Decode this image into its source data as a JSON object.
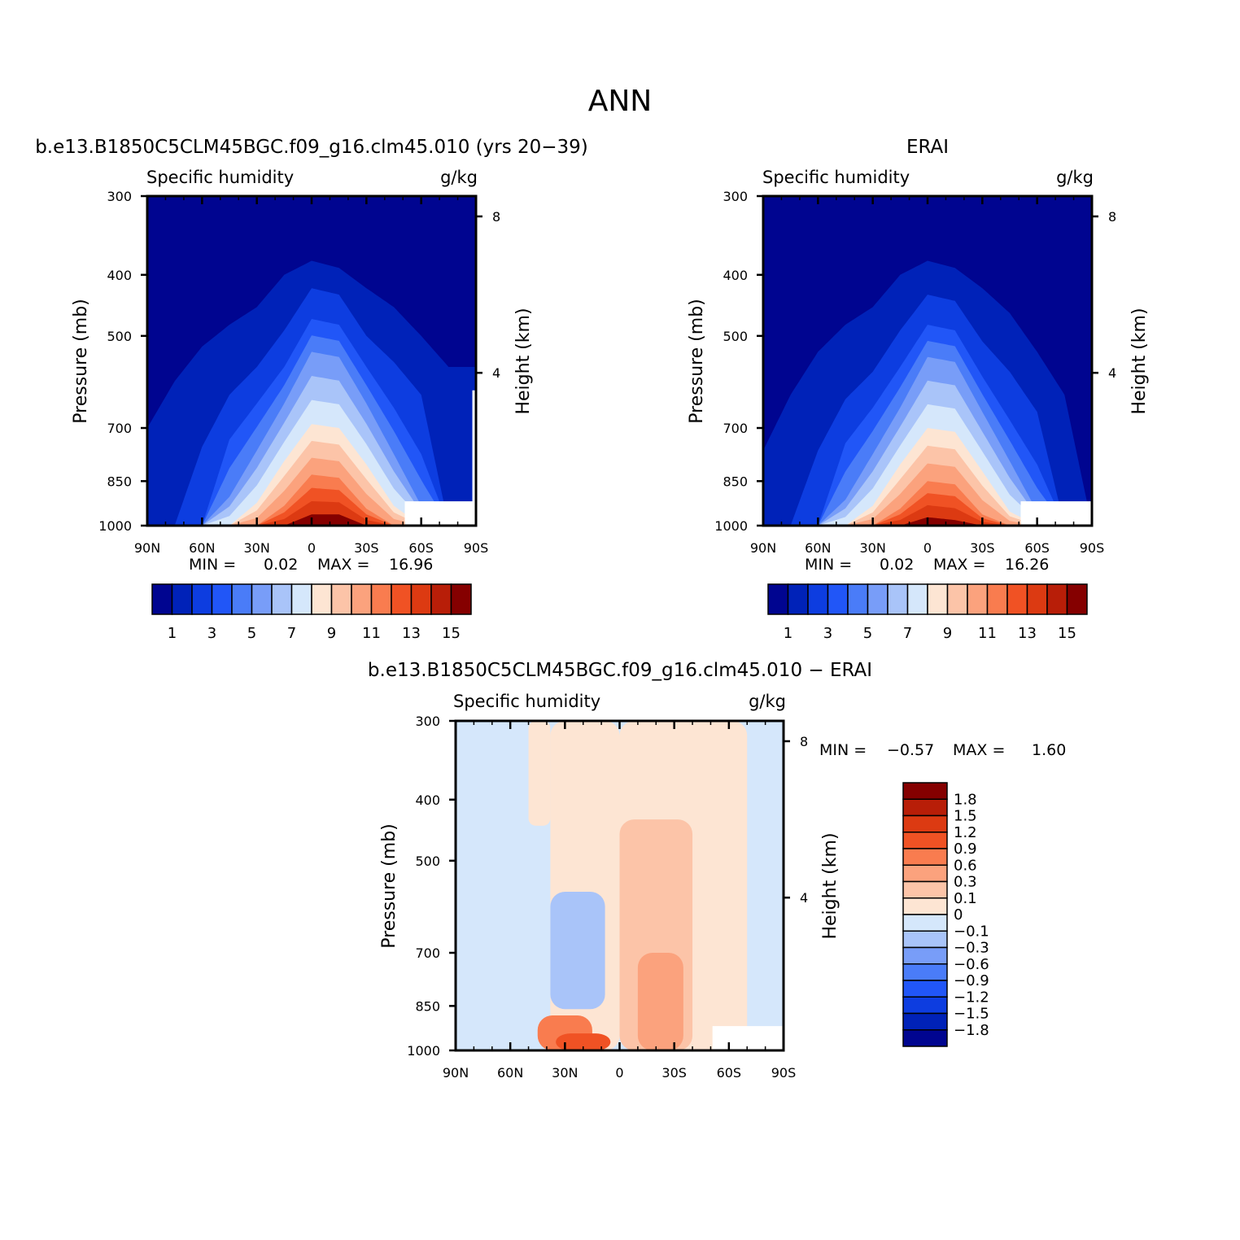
{
  "page": {
    "title": "ANN"
  },
  "axes_common": {
    "lat_ticks": [
      "90N",
      "60N",
      "30N",
      "0",
      "30S",
      "60S",
      "90S"
    ],
    "lat_values": [
      90,
      60,
      30,
      0,
      -30,
      -60,
      -90
    ],
    "pressure_ticks": [
      "300",
      "400",
      "500",
      "700",
      "850",
      "1000"
    ],
    "pressure_values": [
      300,
      400,
      500,
      700,
      850,
      1000
    ],
    "height_ticks": [
      "8",
      "4"
    ],
    "height_values": [
      8,
      4
    ],
    "ylabel_left": "Pressure (mb)",
    "ylabel_right": "Height (km)",
    "variable_label": "Specific humidity",
    "units_label": "g/kg"
  },
  "colors": {
    "abs_scale": [
      "#000590",
      "#0022b8",
      "#0d3de0",
      "#2156f7",
      "#4a7cf8",
      "#789df8",
      "#a9c4f9",
      "#d5e7fb",
      "#fde5d3",
      "#fcc4a8",
      "#fba27d",
      "#f97c4f",
      "#f05224",
      "#dc3a12",
      "#b81e08",
      "#850000"
    ],
    "diff_scale": [
      "#000590",
      "#0022b8",
      "#0d3de0",
      "#2156f7",
      "#4a7cf8",
      "#789df8",
      "#a9c4f9",
      "#d5e7fb",
      "#fde5d3",
      "#fcc4a8",
      "#fba27d",
      "#f97c4f",
      "#f05224",
      "#dc3a12",
      "#b81e08",
      "#850000"
    ]
  },
  "panels": {
    "model": {
      "title": "b.e13.B1850C5CLM45BGC.f09_g16.clm45.010 (yrs 20−39)",
      "stats": {
        "min_label": "MIN =",
        "min_value": "0.02",
        "max_label": "MAX =",
        "max_value": "16.96"
      }
    },
    "obs": {
      "title": "ERAI",
      "stats": {
        "min_label": "MIN =",
        "min_value": "0.02",
        "max_label": "MAX =",
        "max_value": "16.26"
      }
    },
    "diff": {
      "title": "b.e13.B1850C5CLM45BGC.f09_g16.clm45.010 − ERAI",
      "stats": {
        "min_label": "MIN =",
        "min_value": "−0.57",
        "max_label": "MAX =",
        "max_value": "1.60"
      }
    }
  },
  "colorbars": {
    "abs_labels": [
      "1",
      "3",
      "5",
      "7",
      "9",
      "11",
      "13",
      "15"
    ],
    "abs_levels": [
      1,
      2,
      3,
      4,
      5,
      6,
      7,
      8,
      9,
      10,
      11,
      12,
      13,
      14,
      15
    ],
    "diff_labels": [
      "1.8",
      "1.5",
      "1.2",
      "0.9",
      "0.6",
      "0.3",
      "0.1",
      "0",
      "−0.1",
      "−0.3",
      "−0.6",
      "−0.9",
      "−1.2",
      "−1.5",
      "−1.8"
    ],
    "diff_levels": [
      1.8,
      1.5,
      1.2,
      0.9,
      0.6,
      0.3,
      0.1,
      0,
      -0.1,
      -0.3,
      -0.6,
      -0.9,
      -1.2,
      -1.5,
      -1.8
    ]
  },
  "chart_data": [
    {
      "type": "heatmap",
      "title": "b.e13.B1850C5CLM45BGC.f09_g16.clm45.010 (yrs 20−39)",
      "subtitle": "Specific humidity",
      "units": "g/kg",
      "xlabel": "",
      "ylabel": "Pressure (mb)",
      "ylabel_right": "Height (km)",
      "x_ticks": [
        "90N",
        "60N",
        "30N",
        "0",
        "30S",
        "60S",
        "90S"
      ],
      "ylim": [
        1000,
        300
      ],
      "y_scale": "log",
      "contour_levels": [
        1,
        2,
        3,
        4,
        5,
        6,
        7,
        8,
        9,
        10,
        11,
        12,
        13,
        14,
        15
      ],
      "min": 0.02,
      "max": 16.96,
      "contour_tops_mb": {
        "lat": [
          90,
          75,
          60,
          45,
          30,
          15,
          0,
          -15,
          -30,
          -45,
          -60,
          -75,
          -90
        ],
        "level_1": [
          700,
          590,
          520,
          480,
          450,
          400,
          380,
          390,
          420,
          450,
          500,
          560,
          560
        ],
        "level_2": [
          1000,
          1000,
          750,
          620,
          560,
          490,
          420,
          430,
          500,
          550,
          620,
          1000,
          1000
        ],
        "level_3": [
          1000,
          1000,
          1000,
          730,
          640,
          560,
          470,
          480,
          560,
          650,
          770,
          1000,
          1000
        ],
        "level_5": [
          1000,
          1000,
          1000,
          900,
          760,
          640,
          530,
          540,
          640,
          770,
          930,
          1000,
          1000
        ],
        "level_8": [
          1000,
          1000,
          1000,
          1000,
          920,
          790,
          690,
          700,
          800,
          930,
          1000,
          1000,
          1000
        ],
        "level_11": [
          1000,
          1000,
          1000,
          1000,
          1000,
          930,
          830,
          840,
          940,
          1000,
          1000,
          1000,
          1000
        ],
        "level_14": [
          1000,
          1000,
          1000,
          1000,
          1000,
          1000,
          960,
          960,
          1000,
          1000,
          1000,
          1000,
          1000
        ]
      }
    },
    {
      "type": "heatmap",
      "title": "ERAI",
      "subtitle": "Specific humidity",
      "units": "g/kg",
      "xlabel": "",
      "ylabel": "Pressure (mb)",
      "ylabel_right": "Height (km)",
      "x_ticks": [
        "90N",
        "60N",
        "30N",
        "0",
        "30S",
        "60S",
        "90S"
      ],
      "ylim": [
        1000,
        300
      ],
      "y_scale": "log",
      "contour_levels": [
        1,
        2,
        3,
        4,
        5,
        6,
        7,
        8,
        9,
        10,
        11,
        12,
        13,
        14,
        15
      ],
      "min": 0.02,
      "max": 16.26,
      "contour_tops_mb": {
        "lat": [
          90,
          75,
          60,
          45,
          30,
          15,
          0,
          -15,
          -30,
          -45,
          -60,
          -75,
          -90
        ],
        "level_1": [
          760,
          620,
          530,
          480,
          450,
          400,
          380,
          390,
          420,
          460,
          530,
          620,
          1000
        ],
        "level_2": [
          1000,
          1000,
          760,
          630,
          570,
          490,
          430,
          440,
          510,
          570,
          660,
          1000,
          1000
        ],
        "level_3": [
          1000,
          1000,
          1000,
          740,
          650,
          560,
          480,
          490,
          580,
          680,
          800,
          1000,
          1000
        ],
        "level_5": [
          1000,
          1000,
          1000,
          910,
          770,
          650,
          540,
          550,
          660,
          790,
          950,
          1000,
          1000
        ],
        "level_8": [
          1000,
          1000,
          1000,
          1000,
          930,
          800,
          700,
          710,
          820,
          950,
          1000,
          1000,
          1000
        ],
        "level_11": [
          1000,
          1000,
          1000,
          1000,
          1000,
          940,
          850,
          860,
          960,
          1000,
          1000,
          1000,
          1000
        ],
        "level_14": [
          1000,
          1000,
          1000,
          1000,
          1000,
          1000,
          970,
          980,
          1000,
          1000,
          1000,
          1000,
          1000
        ]
      }
    },
    {
      "type": "heatmap",
      "title": "b.e13.B1850C5CLM45BGC.f09_g16.clm45.010 − ERAI",
      "subtitle": "Specific humidity",
      "units": "g/kg",
      "xlabel": "",
      "ylabel": "Pressure (mb)",
      "ylabel_right": "Height (km)",
      "x_ticks": [
        "90N",
        "60N",
        "30N",
        "0",
        "30S",
        "60S",
        "90S"
      ],
      "ylim": [
        1000,
        300
      ],
      "y_scale": "log",
      "contour_levels": [
        1.8,
        1.5,
        1.2,
        0.9,
        0.6,
        0.3,
        0.1,
        0,
        -0.1,
        -0.3,
        -0.6,
        -0.9,
        -1.2,
        -1.5,
        -1.8
      ],
      "min": -0.57,
      "max": 1.6,
      "regions": [
        {
          "lat_range": [
            90,
            50
          ],
          "p_range": [
            300,
            1000
          ],
          "value": -0.05
        },
        {
          "lat_range": [
            50,
            38
          ],
          "p_range": [
            300,
            440
          ],
          "value": 0.05
        },
        {
          "lat_range": [
            38,
            0
          ],
          "p_range": [
            300,
            1000
          ],
          "value": 0.05
        },
        {
          "lat_range": [
            38,
            8
          ],
          "p_range": [
            560,
            860
          ],
          "value": -0.2
        },
        {
          "lat_range": [
            0,
            -70
          ],
          "p_range": [
            300,
            1000
          ],
          "value": 0.05
        },
        {
          "lat_range": [
            0,
            -40
          ],
          "p_range": [
            430,
            1000
          ],
          "value": 0.2
        },
        {
          "lat_range": [
            -10,
            -35
          ],
          "p_range": [
            700,
            1000
          ],
          "value": 0.45
        },
        {
          "lat_range": [
            45,
            15
          ],
          "p_range": [
            880,
            1000
          ],
          "value": 0.75
        },
        {
          "lat_range": [
            35,
            5
          ],
          "p_range": [
            940,
            1000
          ],
          "value": 1.0
        }
      ]
    }
  ]
}
